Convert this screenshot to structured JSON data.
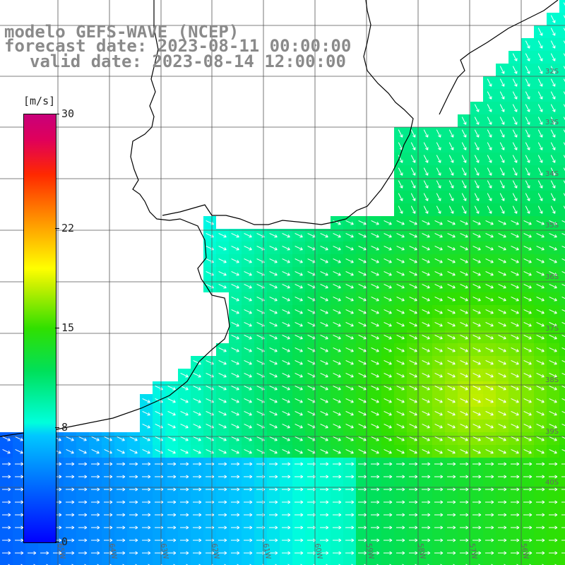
{
  "header": {
    "line1": "modelo GEFS-WAVE (NCEP)",
    "line2": "forecast date: 2023-08-11 00:00:00",
    "line3": "valid date: 2023-08-14 12:00:00"
  },
  "colorbar": {
    "unit": "[m/s]",
    "labels": [
      "30",
      "22",
      "15",
      "8",
      "0"
    ],
    "label_values": [
      30,
      22,
      15,
      8,
      0
    ],
    "min": 0,
    "max": 30,
    "colors": [
      "#0000ff",
      "#00c8ff",
      "#00ffdc",
      "#00e05a",
      "#30e000",
      "#c8f000",
      "#ffff00",
      "#ff8c00",
      "#ff2800",
      "#e0005a",
      "#c8007a"
    ]
  },
  "map": {
    "land_color": "#ffffff",
    "coastline_color": "#000000",
    "grid_color": "#555555",
    "arrow_color": "#ffffff",
    "lat_labels": [
      "32S",
      "33S",
      "34S",
      "35S",
      "36S",
      "37S",
      "38S",
      "39S",
      "40S"
    ],
    "lon_labels": [
      "65W",
      "64W",
      "63W",
      "62W",
      "61W",
      "60W",
      "59W",
      "58W",
      "57W",
      "56W"
    ]
  }
}
